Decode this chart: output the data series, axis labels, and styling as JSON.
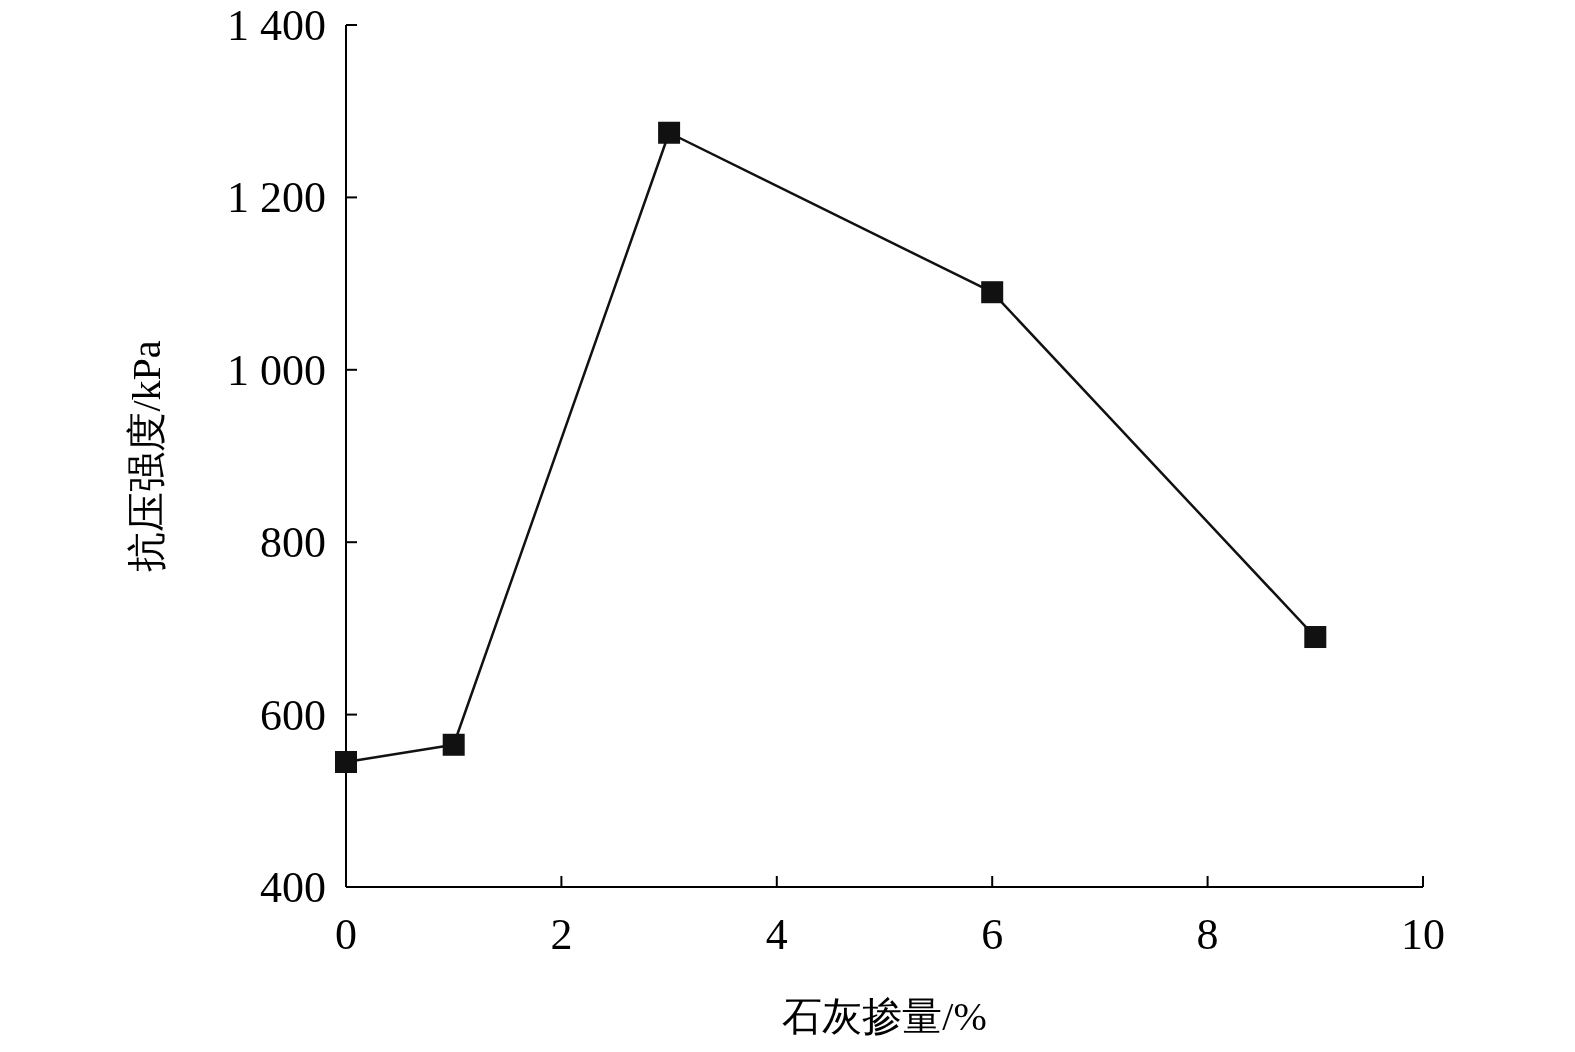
{
  "chart_data": {
    "type": "line",
    "xlabel": "石灰掺量/%",
    "ylabel": "抗压强度/kPa",
    "x": [
      0,
      1,
      3,
      6,
      9
    ],
    "values": [
      545,
      565,
      1275,
      1090,
      690
    ],
    "color": "#111111",
    "marker": "square",
    "line_style": "solid",
    "xlim": [
      0,
      10
    ],
    "xticks": [
      0,
      2,
      4,
      6,
      8,
      10
    ],
    "ylim": [
      400,
      1400
    ],
    "yticks": [
      {
        "value": 400,
        "label": "400"
      },
      {
        "value": 600,
        "label": "600"
      },
      {
        "value": 800,
        "label": "800"
      },
      {
        "value": 1000,
        "label": "1 000"
      },
      {
        "value": 1200,
        "label": "1 200"
      },
      {
        "value": 1400,
        "label": "1 400"
      }
    ],
    "grid": false
  }
}
